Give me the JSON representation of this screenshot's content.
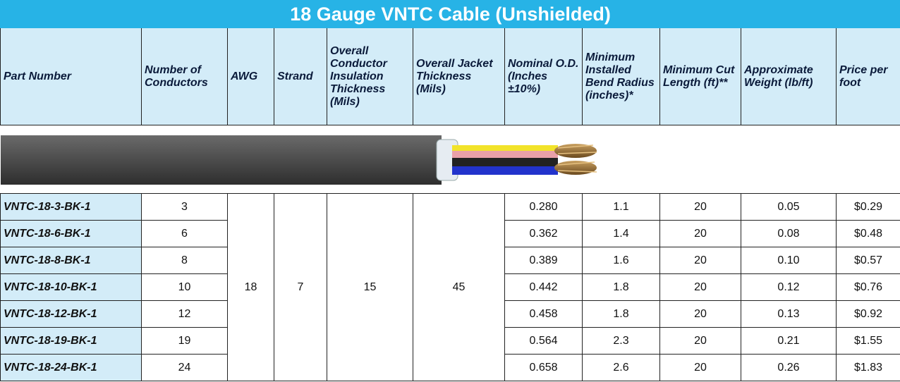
{
  "title": "18 Gauge VNTC Cable (Unshielded)",
  "headers": [
    "Part Number",
    "Number of Conductors",
    "AWG",
    "Strand",
    "Overall Conductor Insulation Thickness (Mils)",
    "Overall Jacket Thickness (Mils)",
    "Nominal O.D. (Inches ±10%)",
    "Minimum Installed Bend Radius (inches)*",
    "Minimum Cut Length (ft)**",
    "Approximate Weight (lb/ft)",
    "Price per foot"
  ],
  "shared": {
    "awg": "18",
    "strand": "7",
    "insulation": "15",
    "jacket": "45"
  },
  "rows": [
    {
      "part": "VNTC-18-3-BK-1",
      "conductors": "3",
      "od": "0.280",
      "bend": "1.1",
      "cut": "20",
      "weight": "0.05",
      "price": "$0.29"
    },
    {
      "part": "VNTC-18-6-BK-1",
      "conductors": "6",
      "od": "0.362",
      "bend": "1.4",
      "cut": "20",
      "weight": "0.08",
      "price": "$0.48"
    },
    {
      "part": "VNTC-18-8-BK-1",
      "conductors": "8",
      "od": "0.389",
      "bend": "1.6",
      "cut": "20",
      "weight": "0.10",
      "price": "$0.57"
    },
    {
      "part": "VNTC-18-10-BK-1",
      "conductors": "10",
      "od": "0.442",
      "bend": "1.8",
      "cut": "20",
      "weight": "0.12",
      "price": "$0.76"
    },
    {
      "part": "VNTC-18-12-BK-1",
      "conductors": "12",
      "od": "0.458",
      "bend": "1.8",
      "cut": "20",
      "weight": "0.13",
      "price": "$0.92"
    },
    {
      "part": "VNTC-18-19-BK-1",
      "conductors": "19",
      "od": "0.564",
      "bend": "2.3",
      "cut": "20",
      "weight": "0.21",
      "price": "$1.55"
    },
    {
      "part": "VNTC-18-24-BK-1",
      "conductors": "24",
      "od": "0.658",
      "bend": "2.6",
      "cut": "20",
      "weight": "0.26",
      "price": "$1.83"
    }
  ]
}
